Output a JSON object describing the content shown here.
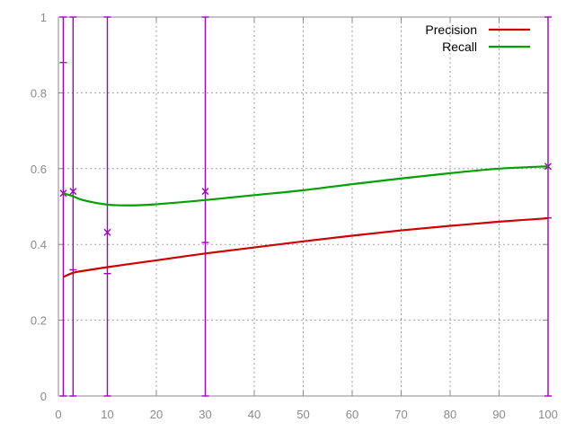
{
  "chart_data": {
    "type": "line",
    "title": "",
    "xlabel": "",
    "ylabel": "",
    "xlim": [
      0,
      100
    ],
    "ylim": [
      0,
      1
    ],
    "xticks": [
      0,
      10,
      20,
      30,
      40,
      50,
      60,
      70,
      80,
      90,
      100
    ],
    "yticks": [
      0,
      0.2,
      0.4,
      0.6,
      0.8,
      1
    ],
    "grid": true,
    "legend_position": "top-right",
    "series": [
      {
        "name": "Precision",
        "color": "#cc0000",
        "x": [
          1,
          3,
          5,
          10,
          15,
          20,
          30,
          40,
          50,
          60,
          70,
          80,
          90,
          100
        ],
        "y": [
          0.314,
          0.325,
          0.33,
          0.34,
          0.349,
          0.358,
          0.376,
          0.392,
          0.408,
          0.423,
          0.437,
          0.449,
          0.46,
          0.469
        ]
      },
      {
        "name": "Recall",
        "color": "#00a000",
        "x": [
          1,
          3,
          5,
          10,
          15,
          20,
          30,
          40,
          50,
          60,
          70,
          80,
          90,
          100
        ],
        "y": [
          0.535,
          0.527,
          0.517,
          0.505,
          0.503,
          0.506,
          0.517,
          0.53,
          0.543,
          0.559,
          0.574,
          0.588,
          0.6,
          0.606
        ]
      }
    ],
    "error_bars": {
      "color": "#a000c0",
      "points": [
        {
          "x": 1,
          "y": 0.535,
          "low": 0.0,
          "high": 1.0
        },
        {
          "x": 3,
          "y": 0.54,
          "low": 0.0,
          "high": 1.0
        },
        {
          "x": 10,
          "y": 0.432,
          "low": 0.0,
          "high": 1.0
        },
        {
          "x": 30,
          "y": 0.54,
          "low": 0.0,
          "high": 1.0
        },
        {
          "x": 100,
          "y": 0.606,
          "low": 0.0,
          "high": 1.0
        }
      ],
      "extra_ticks": [
        {
          "x": 1,
          "y": 0.88
        },
        {
          "x": 3,
          "y": 0.333
        },
        {
          "x": 10,
          "y": 0.323
        },
        {
          "x": 30,
          "y": 0.405
        },
        {
          "x": 100,
          "y": 0.47
        }
      ]
    }
  }
}
